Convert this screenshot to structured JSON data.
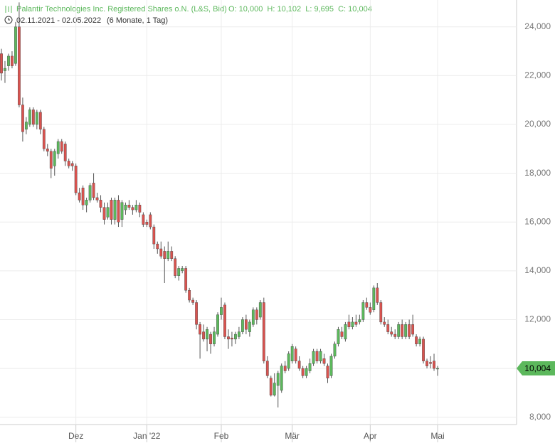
{
  "chart_data": {
    "type": "candlestick",
    "title": "Palantir Technologies Inc. Registered Shares o.N. (L&S, Bid)",
    "ohlc_summary": "O: 10,000  H: 10,102  L: 9,695  C: 10,004",
    "subtitle": "02.11.2021 - 02.05.2022",
    "duration": "(6 Monate, 1 Tag)",
    "up_color": "#5cb85c",
    "down_color": "#d9534f",
    "last_price": {
      "value": 10004,
      "label": "10,004"
    },
    "ylim": [
      7700,
      25100
    ],
    "yticks": [
      {
        "value": 8000,
        "label": "8,000"
      },
      {
        "value": 10000,
        "label": "10,000"
      },
      {
        "value": 12000,
        "label": "12,000"
      },
      {
        "value": 14000,
        "label": "14,000"
      },
      {
        "value": 16000,
        "label": "16,000"
      },
      {
        "value": 18000,
        "label": "18,000"
      },
      {
        "value": 20000,
        "label": "20,000"
      },
      {
        "value": 22000,
        "label": "22,000"
      },
      {
        "value": 24000,
        "label": "24,000"
      }
    ],
    "xticks": [
      {
        "value": 21,
        "label": "Dez"
      },
      {
        "value": 41,
        "label": "Jan '22"
      },
      {
        "value": 62,
        "label": "Feb"
      },
      {
        "value": 82,
        "label": "Mär"
      },
      {
        "value": 104,
        "label": "Apr"
      },
      {
        "value": 123,
        "label": "Mai"
      }
    ],
    "grid": true,
    "ohlc": [
      [
        22900,
        23100,
        21800,
        22100
      ],
      [
        22200,
        22600,
        21700,
        22300
      ],
      [
        22400,
        22900,
        22200,
        22800
      ],
      [
        22800,
        23000,
        22300,
        22400
      ],
      [
        22500,
        24200,
        22400,
        24000
      ],
      [
        24000,
        25000,
        20700,
        20800
      ],
      [
        20800,
        21100,
        19300,
        19700
      ],
      [
        19800,
        20300,
        19600,
        20100
      ],
      [
        20000,
        20700,
        19900,
        20600
      ],
      [
        20600,
        20700,
        19900,
        20000
      ],
      [
        20000,
        20600,
        19800,
        20500
      ],
      [
        20500,
        20600,
        19600,
        19800
      ],
      [
        19800,
        19900,
        18900,
        19000
      ],
      [
        19000,
        19200,
        18700,
        18900
      ],
      [
        18900,
        19000,
        17800,
        18200
      ],
      [
        18300,
        19000,
        17900,
        18900
      ],
      [
        18800,
        19400,
        18600,
        19300
      ],
      [
        19300,
        19400,
        18800,
        18900
      ],
      [
        19200,
        19300,
        18300,
        18500
      ],
      [
        18500,
        18600,
        18200,
        18300
      ],
      [
        18400,
        18500,
        18100,
        18300
      ],
      [
        18300,
        18400,
        17100,
        17200
      ],
      [
        17200,
        17400,
        16800,
        16900
      ],
      [
        17400,
        17500,
        16500,
        16700
      ],
      [
        16700,
        17000,
        16400,
        16900
      ],
      [
        16900,
        17600,
        16800,
        17500
      ],
      [
        17600,
        18000,
        16900,
        17000
      ],
      [
        17000,
        17200,
        16800,
        16900
      ],
      [
        16900,
        17100,
        16400,
        16600
      ],
      [
        16600,
        16800,
        15900,
        16100
      ],
      [
        16200,
        16800,
        16100,
        16600
      ],
      [
        16900,
        17000,
        15900,
        16100
      ],
      [
        16100,
        17000,
        15900,
        16900
      ],
      [
        16900,
        17100,
        15800,
        16000
      ],
      [
        16100,
        16900,
        15800,
        16800
      ],
      [
        16500,
        16800,
        16300,
        16700
      ],
      [
        16700,
        16900,
        16500,
        16600
      ],
      [
        16600,
        16700,
        16300,
        16500
      ],
      [
        16500,
        16900,
        16400,
        16700
      ],
      [
        16700,
        16800,
        16200,
        16400
      ],
      [
        16300,
        16400,
        15800,
        15900
      ],
      [
        16000,
        16100,
        15800,
        15900
      ],
      [
        16300,
        16400,
        15700,
        15800
      ],
      [
        15800,
        15900,
        14900,
        15100
      ],
      [
        15100,
        15200,
        14700,
        14900
      ],
      [
        14900,
        15200,
        14500,
        14600
      ],
      [
        14800,
        15000,
        13500,
        14500
      ],
      [
        14500,
        15200,
        14400,
        14800
      ],
      [
        14800,
        15000,
        14400,
        14500
      ],
      [
        14500,
        14600,
        13700,
        13800
      ],
      [
        13800,
        14200,
        13600,
        14100
      ],
      [
        14000,
        14200,
        13900,
        14100
      ],
      [
        14100,
        14200,
        13100,
        13200
      ],
      [
        13200,
        13300,
        12700,
        12800
      ],
      [
        12800,
        12900,
        12600,
        12700
      ],
      [
        12700,
        12800,
        11600,
        11800
      ],
      [
        11800,
        11900,
        10400,
        11400
      ],
      [
        11500,
        11800,
        11100,
        11200
      ],
      [
        11200,
        11700,
        10700,
        11600
      ],
      [
        11400,
        11500,
        10600,
        11000
      ],
      [
        11000,
        11700,
        10900,
        11500
      ],
      [
        11400,
        12300,
        11300,
        12200
      ],
      [
        12200,
        12900,
        12000,
        12500
      ],
      [
        12600,
        12700,
        11200,
        11300
      ],
      [
        11300,
        11600,
        10800,
        11200
      ],
      [
        11250,
        11500,
        10900,
        11200
      ],
      [
        11200,
        11500,
        11000,
        11400
      ],
      [
        11300,
        11700,
        11200,
        11500
      ],
      [
        11500,
        12100,
        11400,
        12000
      ],
      [
        12000,
        12200,
        11400,
        11600
      ],
      [
        11500,
        12000,
        11300,
        11900
      ],
      [
        11800,
        12500,
        11700,
        12400
      ],
      [
        12400,
        12500,
        11800,
        12000
      ],
      [
        12100,
        12800,
        12000,
        12700
      ],
      [
        12700,
        12900,
        10200,
        10300
      ],
      [
        10300,
        10500,
        9600,
        9700
      ],
      [
        9600,
        9700,
        8850,
        8900
      ],
      [
        8900,
        9800,
        8850,
        9400
      ],
      [
        9300,
        9900,
        8400,
        9800
      ],
      [
        9100,
        10200,
        9000,
        10100
      ],
      [
        10100,
        10300,
        9800,
        9900
      ],
      [
        10000,
        10700,
        9900,
        10600
      ],
      [
        10300,
        11000,
        10200,
        10900
      ],
      [
        10800,
        10900,
        10200,
        10300
      ],
      [
        10300,
        10500,
        9900,
        10000
      ],
      [
        10000,
        10100,
        9600,
        9700
      ],
      [
        9700,
        10100,
        9600,
        10000
      ],
      [
        9900,
        10400,
        9800,
        10200
      ],
      [
        10200,
        10800,
        10100,
        10700
      ],
      [
        10700,
        10800,
        10200,
        10300
      ],
      [
        10300,
        10800,
        10200,
        10700
      ],
      [
        10400,
        10600,
        10100,
        10200
      ],
      [
        10100,
        10200,
        9400,
        9600
      ],
      [
        9700,
        10600,
        9600,
        10500
      ],
      [
        10500,
        11100,
        10400,
        11000
      ],
      [
        11000,
        11700,
        10900,
        11600
      ],
      [
        11500,
        11700,
        11200,
        11300
      ],
      [
        11200,
        11900,
        11100,
        11800
      ],
      [
        11900,
        12200,
        11600,
        11700
      ],
      [
        11700,
        12100,
        11600,
        11900
      ],
      [
        11900,
        12200,
        11700,
        11800
      ],
      [
        11900,
        12200,
        11800,
        12000
      ],
      [
        12000,
        12800,
        11900,
        12700
      ],
      [
        12700,
        12900,
        12400,
        12500
      ],
      [
        12500,
        12700,
        12200,
        12300
      ],
      [
        12400,
        13400,
        12300,
        13300
      ],
      [
        13300,
        13500,
        12600,
        12700
      ],
      [
        12700,
        12800,
        11800,
        11900
      ],
      [
        11900,
        12100,
        11700,
        11800
      ],
      [
        11800,
        12000,
        11400,
        11500
      ],
      [
        11500,
        11700,
        11300,
        11400
      ],
      [
        11400,
        11600,
        11200,
        11300
      ],
      [
        11300,
        11900,
        11200,
        11800
      ],
      [
        11800,
        12000,
        11200,
        11300
      ],
      [
        11300,
        11900,
        11200,
        11800
      ],
      [
        11800,
        12000,
        11200,
        11300
      ],
      [
        11800,
        12200,
        11300,
        11400
      ],
      [
        11300,
        11400,
        10900,
        11000
      ],
      [
        11000,
        11300,
        10900,
        11200
      ],
      [
        11200,
        11300,
        10200,
        10300
      ],
      [
        10300,
        10400,
        10000,
        10100
      ],
      [
        10250,
        10500,
        10000,
        10200
      ],
      [
        10300,
        10600,
        9900,
        10000
      ],
      [
        10000,
        10102,
        9695,
        10004
      ]
    ]
  }
}
